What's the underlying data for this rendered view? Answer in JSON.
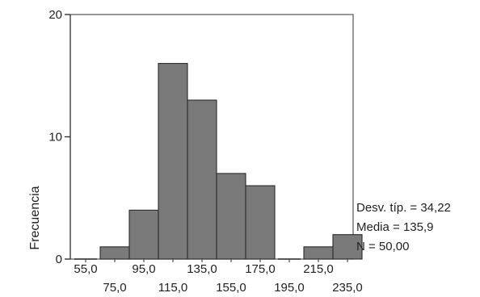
{
  "chart_data": {
    "type": "bar",
    "ylabel": "Frecuencia",
    "categories": [
      "55,0",
      "75,0",
      "95,0",
      "115,0",
      "135,0",
      "155,0",
      "175,0",
      "195,0",
      "215,0",
      "235,0"
    ],
    "values": [
      0,
      1,
      4,
      16,
      13,
      7,
      6,
      0,
      1,
      2
    ],
    "ylim": [
      0,
      20
    ],
    "yticks": [
      0,
      10,
      20
    ],
    "ytick_labels": [
      "0",
      "10",
      "20"
    ],
    "grid": false,
    "colors": {
      "bar": "#7a7a7a",
      "frame": "#555555",
      "text": "#222222"
    },
    "stats": {
      "std_dev": "Desv. típ. = 34,22",
      "mean": "Media = 135,9",
      "n": "N = 50,00"
    }
  }
}
